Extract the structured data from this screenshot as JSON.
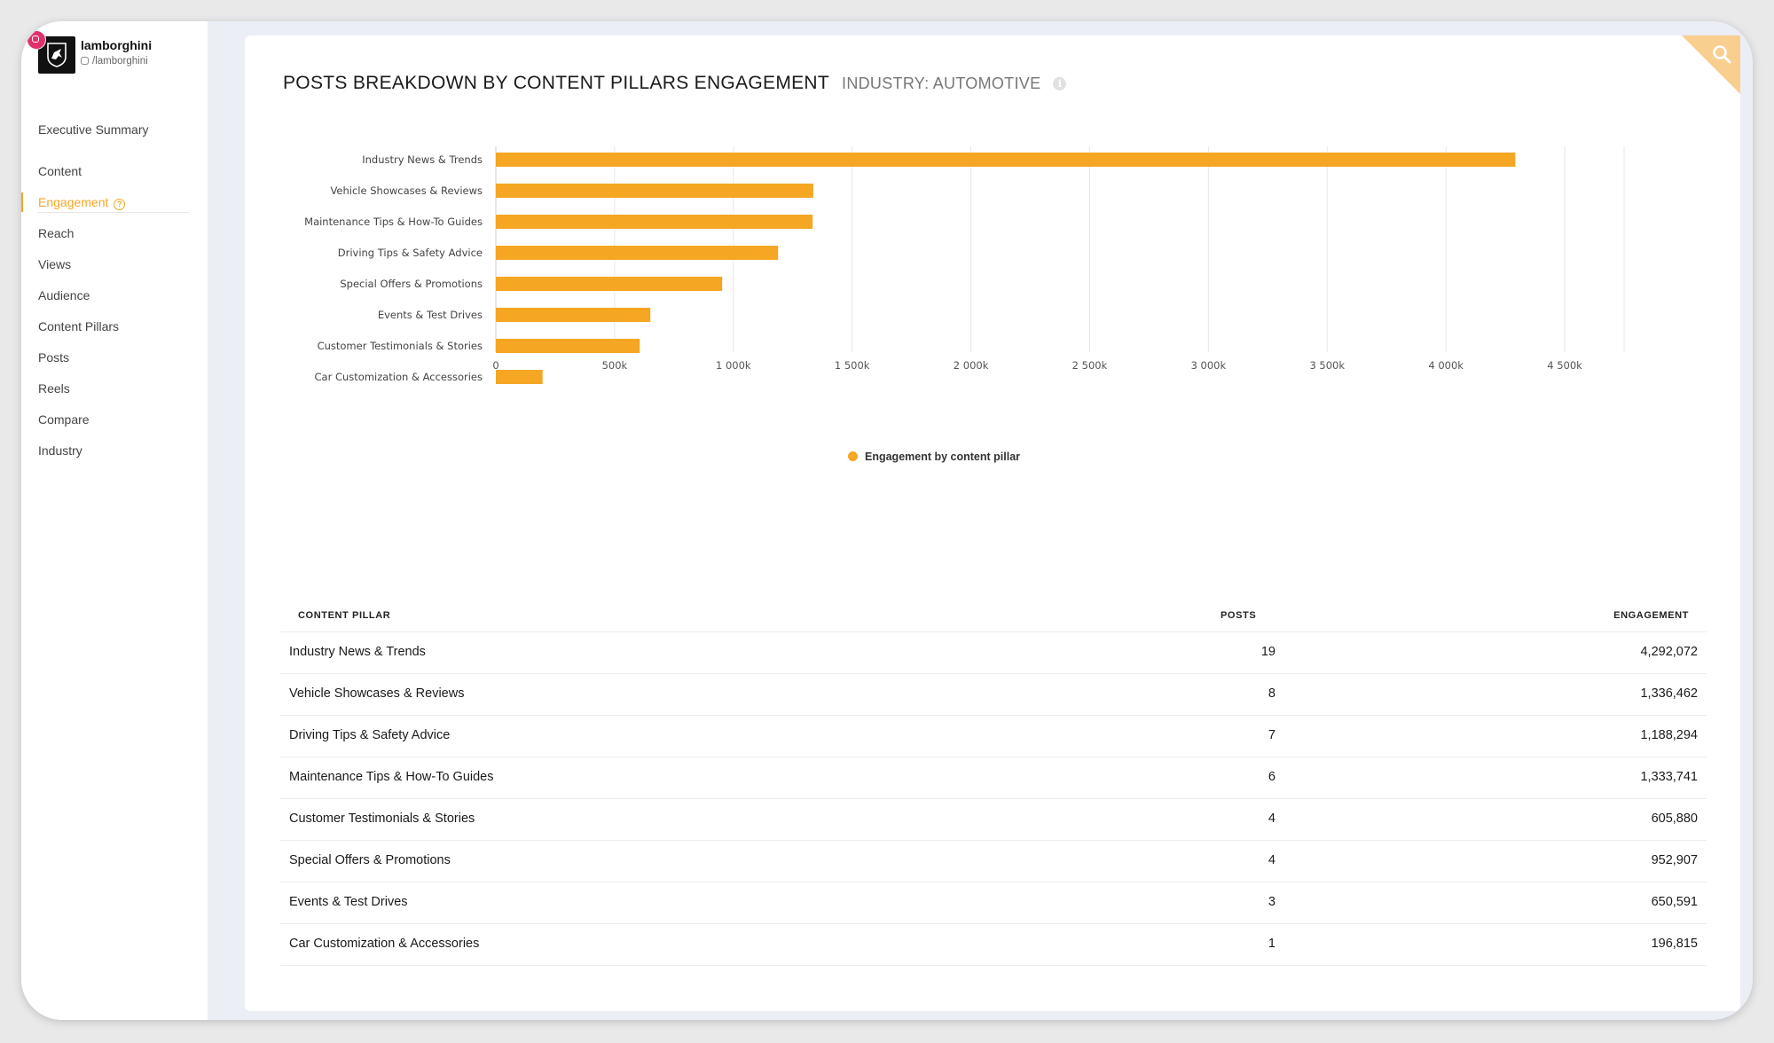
{
  "profile": {
    "name": "lamborghini",
    "handle": "/lamborghini",
    "platform_icon": "instagram-icon"
  },
  "sidebar": {
    "items": [
      {
        "label": "Executive Summary"
      },
      {
        "label": "Content"
      },
      {
        "label": "Engagement",
        "active": true
      },
      {
        "label": "Reach"
      },
      {
        "label": "Views"
      },
      {
        "label": "Audience"
      },
      {
        "label": "Content Pillars"
      },
      {
        "label": "Posts"
      },
      {
        "label": "Reels"
      },
      {
        "label": "Compare"
      },
      {
        "label": "Industry"
      }
    ]
  },
  "header": {
    "title": "POSTS BREAKDOWN BY CONTENT PILLARS ENGAGEMENT",
    "subtitle": "INDUSTRY: AUTOMOTIVE"
  },
  "chart_data": {
    "type": "bar",
    "orientation": "horizontal",
    "categories": [
      "Industry News & Trends",
      "Vehicle Showcases & Reviews",
      "Maintenance Tips & How-To Guides",
      "Driving Tips & Safety Advice",
      "Special Offers & Promotions",
      "Events & Test Drives",
      "Customer Testimonials & Stories",
      "Car Customization & Accessories"
    ],
    "series": [
      {
        "name": "Engagement by content pillar",
        "values": [
          4292072,
          1336462,
          1333741,
          1188294,
          952907,
          650591,
          605880,
          196815
        ]
      }
    ],
    "xlim": [
      0,
      4750000
    ],
    "xticks": [
      "0",
      "500k",
      "1 000k",
      "1 500k",
      "2 000k",
      "2 500k",
      "3 000k",
      "3 500k",
      "4 000k",
      "4 500k"
    ],
    "grid": true,
    "legend": "bottom-center",
    "color": "#f5a623"
  },
  "table": {
    "headers": {
      "pillar": "CONTENT PILLAR",
      "posts": "POSTS",
      "engagement": "ENGAGEMENT"
    },
    "rows": [
      {
        "pillar": "Industry News & Trends",
        "posts": "19",
        "engagement": "4,292,072"
      },
      {
        "pillar": "Vehicle Showcases & Reviews",
        "posts": "8",
        "engagement": "1,336,462"
      },
      {
        "pillar": "Driving Tips & Safety Advice",
        "posts": "7",
        "engagement": "1,188,294"
      },
      {
        "pillar": "Maintenance Tips & How-To Guides",
        "posts": "6",
        "engagement": "1,333,741"
      },
      {
        "pillar": "Customer Testimonials & Stories",
        "posts": "4",
        "engagement": "605,880"
      },
      {
        "pillar": "Special Offers & Promotions",
        "posts": "4",
        "engagement": "952,907"
      },
      {
        "pillar": "Events & Test Drives",
        "posts": "3",
        "engagement": "650,591"
      },
      {
        "pillar": "Car Customization & Accessories",
        "posts": "1",
        "engagement": "196,815"
      }
    ]
  }
}
